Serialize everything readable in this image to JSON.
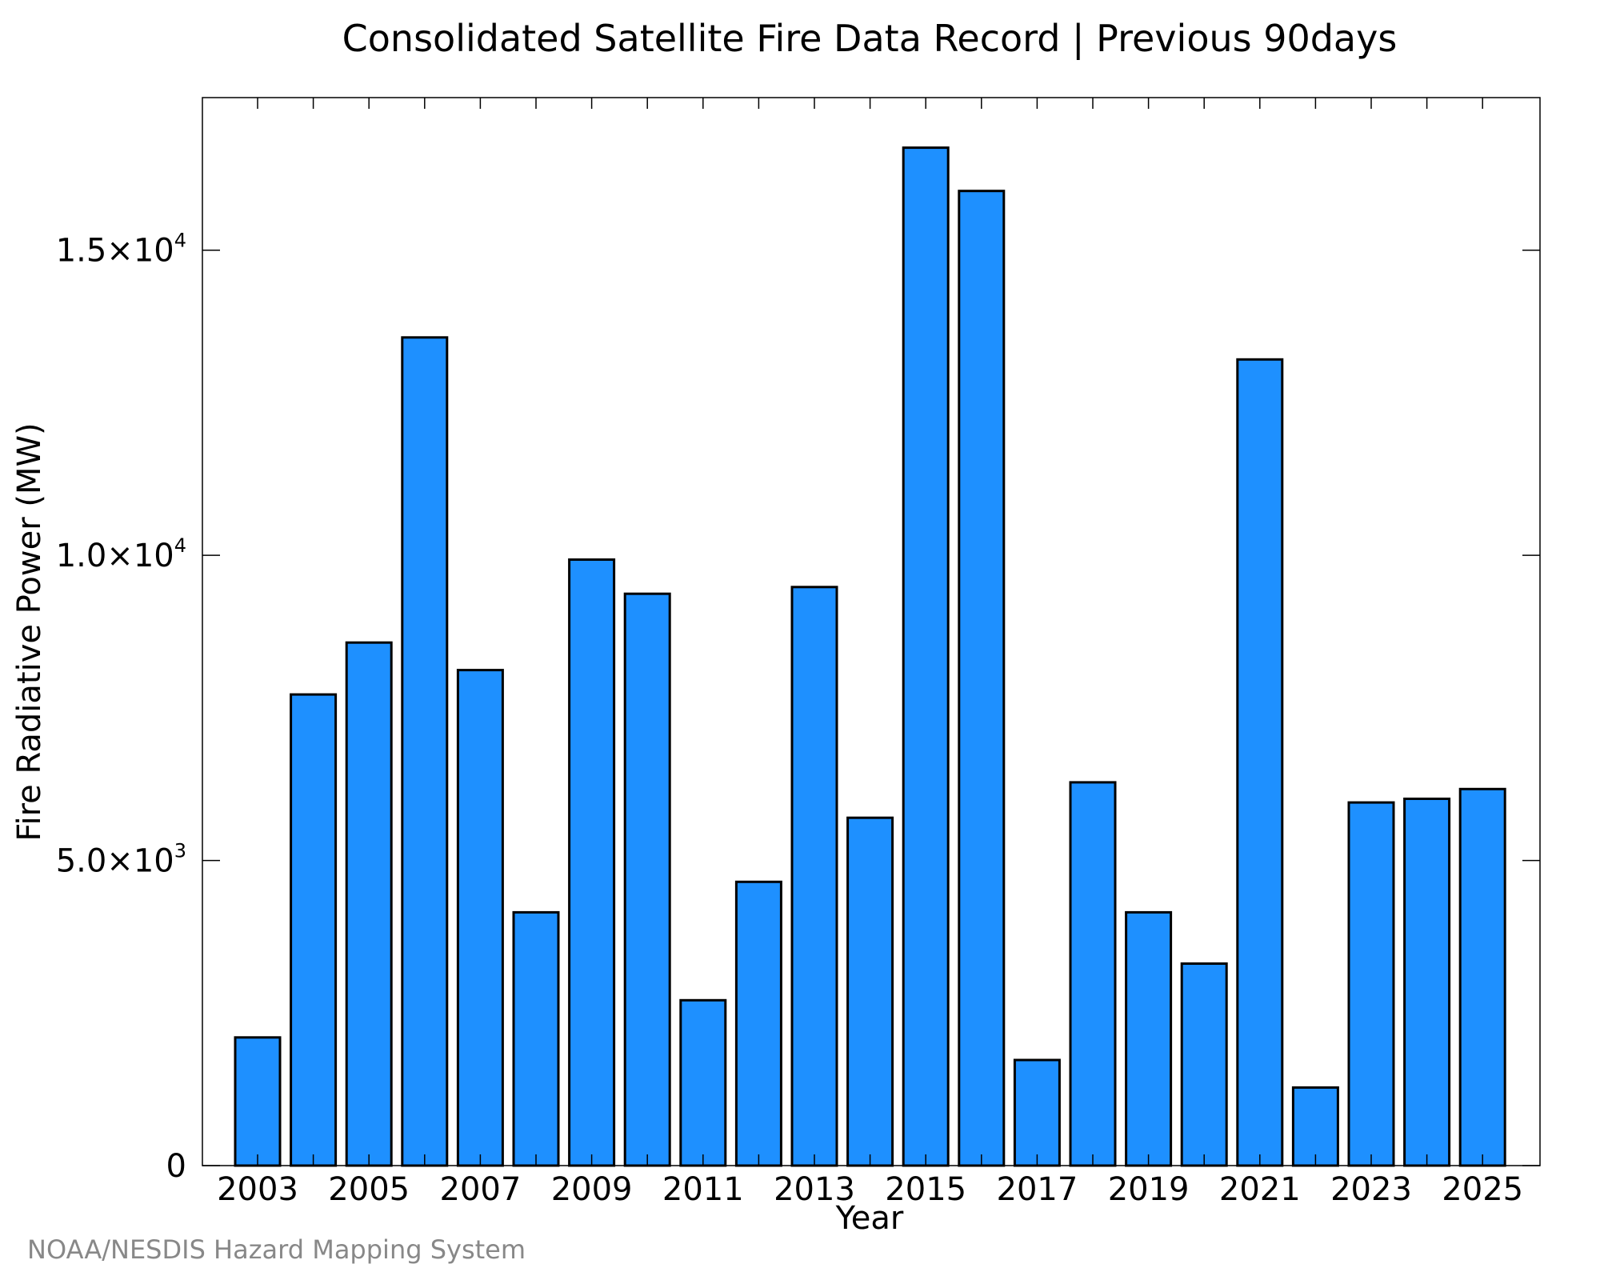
{
  "colors": {
    "bar_fill": "#1e90ff",
    "bar_stroke": "#000000",
    "frame": "#000000",
    "source_text": "#888888",
    "background": "#ffffff"
  },
  "source_note": "NOAA/NESDIS Hazard Mapping System",
  "chart_data": {
    "type": "bar",
    "title": "Consolidated Satellite Fire Data Record | Previous 90days",
    "xlabel": "Year",
    "ylabel": "Fire Radiative Power (MW)",
    "ylim": [
      0,
      17500
    ],
    "grid": false,
    "legend": "none",
    "categories": [
      "2003",
      "2004",
      "2005",
      "2006",
      "2007",
      "2008",
      "2009",
      "2010",
      "2011",
      "2012",
      "2013",
      "2014",
      "2015",
      "2016",
      "2017",
      "2018",
      "2019",
      "2020",
      "2021",
      "2022",
      "2023",
      "2024",
      "2025"
    ],
    "values": [
      2100,
      7720,
      8570,
      13570,
      8120,
      4150,
      9930,
      9370,
      2710,
      4650,
      9480,
      5700,
      16680,
      15970,
      1730,
      6280,
      4150,
      3310,
      13210,
      1280,
      5950,
      6010,
      6170
    ],
    "x_tick_labels": [
      "2003",
      "2005",
      "2007",
      "2009",
      "2011",
      "2013",
      "2015",
      "2017",
      "2019",
      "2021",
      "2023",
      "2025"
    ],
    "y_ticks": [
      {
        "value": 0,
        "mantissa": "0",
        "exponent": ""
      },
      {
        "value": 5000,
        "mantissa": "5.0×10",
        "exponent": "3"
      },
      {
        "value": 10000,
        "mantissa": "1.0×10",
        "exponent": "4"
      },
      {
        "value": 15000,
        "mantissa": "1.5×10",
        "exponent": "4"
      }
    ]
  }
}
